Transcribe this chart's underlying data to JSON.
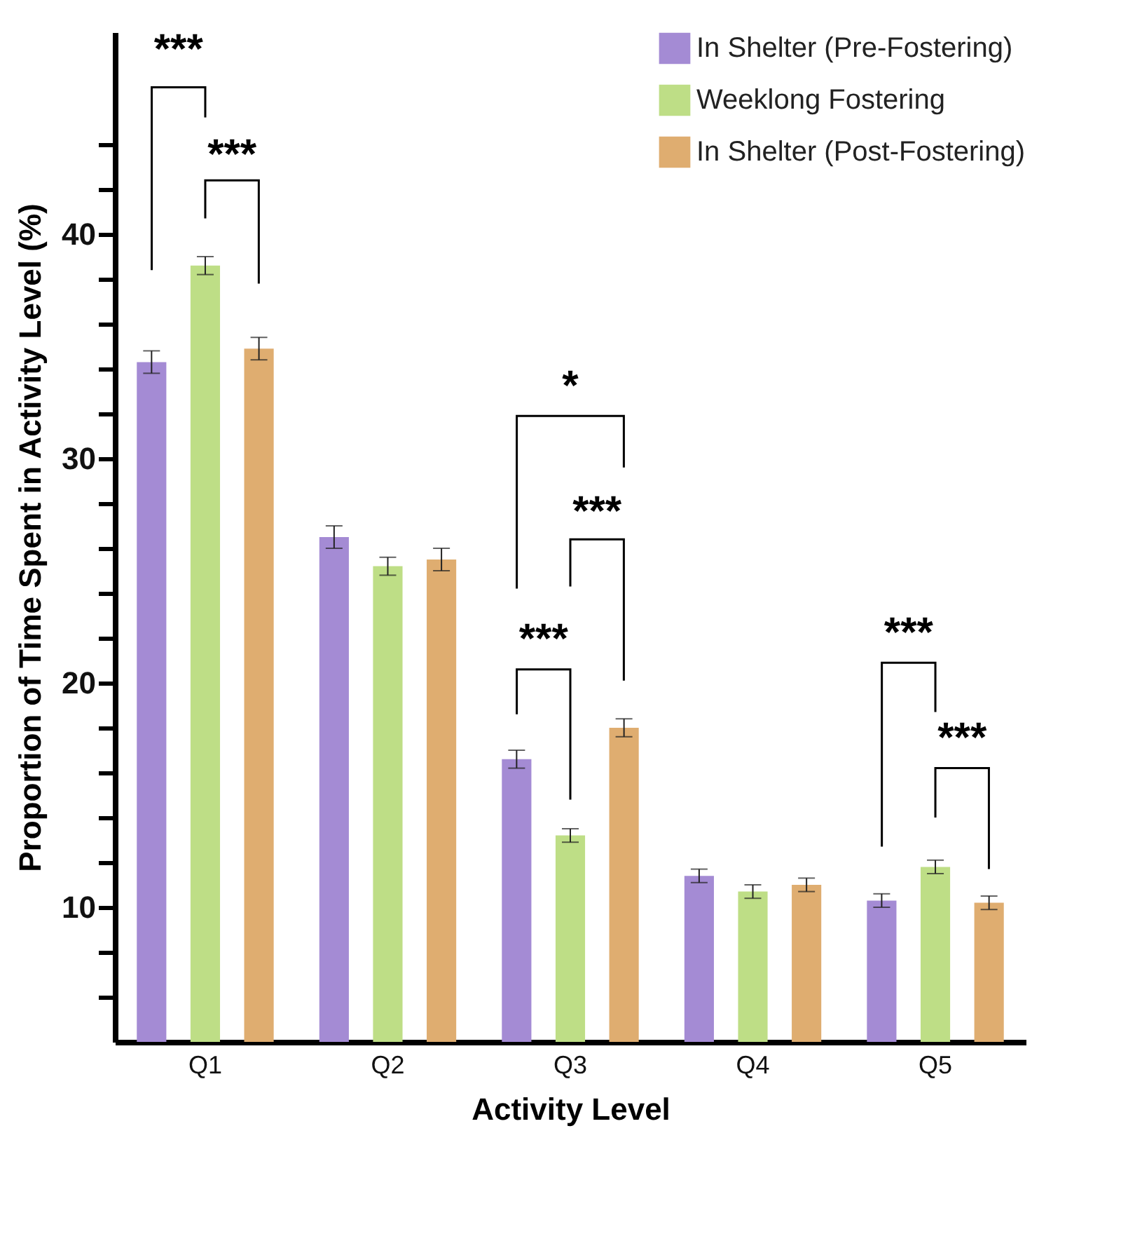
{
  "chart_data": {
    "type": "bar",
    "xlabel": "Activity Level",
    "ylabel": "Proportion of Time Spent in Activity Level (%)",
    "categories": [
      "Q1",
      "Q2",
      "Q3",
      "Q4",
      "Q5"
    ],
    "series": [
      {
        "name": "In Shelter (Pre-Fostering)",
        "color": "#a48bd4",
        "values": [
          34.3,
          26.5,
          16.6,
          11.4,
          10.3
        ],
        "errors": [
          0.5,
          0.5,
          0.4,
          0.3,
          0.3
        ]
      },
      {
        "name": "Weeklong Fostering",
        "color": "#bede86",
        "values": [
          38.6,
          25.2,
          13.2,
          10.7,
          11.8
        ],
        "errors": [
          0.4,
          0.4,
          0.3,
          0.3,
          0.3
        ]
      },
      {
        "name": "In Shelter (Post-Fostering)",
        "color": "#dfad70",
        "values": [
          34.9,
          25.5,
          18.0,
          11.0,
          10.2
        ],
        "errors": [
          0.5,
          0.5,
          0.4,
          0.3,
          0.3
        ]
      }
    ],
    "ylim": [
      4,
      49
    ],
    "yticks": [
      {
        "value": 6,
        "label": null
      },
      {
        "value": 8,
        "label": null
      },
      10,
      {
        "value": 12,
        "label": null
      },
      {
        "value": 14,
        "label": null
      },
      {
        "value": 16,
        "label": null
      },
      {
        "value": 18,
        "label": null
      },
      20,
      {
        "value": 22,
        "label": null
      },
      {
        "value": 24,
        "label": null
      },
      {
        "value": 26,
        "label": null
      },
      {
        "value": 28,
        "label": null
      },
      30,
      {
        "value": 32,
        "label": null
      },
      {
        "value": 34,
        "label": null
      },
      {
        "value": 36,
        "label": null
      },
      {
        "value": 38,
        "label": null
      },
      40,
      {
        "value": 42,
        "label": null
      },
      {
        "value": 44,
        "label": null
      }
    ],
    "grid": false,
    "legend": "top right",
    "annotations": [
      "***",
      "***",
      "*",
      "***",
      "***",
      "***",
      "***"
    ]
  }
}
